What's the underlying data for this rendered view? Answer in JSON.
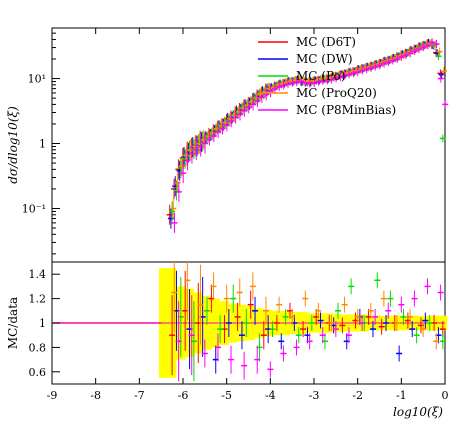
{
  "chart_data": [
    {
      "type": "scatter",
      "panel": "main",
      "ylabel": "dσ/dlog10(ξ)",
      "yscale": "log",
      "ylim": [
        0.015,
        60
      ],
      "xlim": [
        -9,
        0
      ],
      "yticks": [
        {
          "v": 0.1,
          "label": "10⁻¹"
        },
        {
          "v": 1,
          "label": "1"
        },
        {
          "v": 10,
          "label": "10¹"
        }
      ],
      "legend": {
        "placement": "top-right"
      },
      "series": [
        {
          "name": "MC (D6T)",
          "color": "#ff0000",
          "x": [
            -6.25,
            -6.15,
            -6.05,
            -5.95,
            -5.85,
            -5.75,
            -5.65,
            -5.55,
            -5.45,
            -5.35,
            -5.25,
            -5.15,
            -5.05,
            -4.95,
            -4.85,
            -4.75,
            -4.65,
            -4.55,
            -4.45,
            -4.35,
            -4.25,
            -4.15,
            -4.05,
            -3.95,
            -3.85,
            -3.75,
            -3.65,
            -3.55,
            -3.45,
            -3.35,
            -3.25,
            -3.15,
            -3.05,
            -2.95,
            -2.85,
            -2.75,
            -2.65,
            -2.55,
            -2.45,
            -2.35,
            -2.25,
            -2.15,
            -2.05,
            -1.95,
            -1.85,
            -1.75,
            -1.65,
            -1.55,
            -1.45,
            -1.35,
            -1.25,
            -1.15,
            -1.05,
            -0.95,
            -0.85,
            -0.75,
            -0.65,
            -0.55,
            -0.45,
            -0.35,
            -0.25,
            -0.15,
            -0.05
          ],
          "y": [
            0.08,
            0.2,
            0.4,
            0.6,
            0.75,
            0.85,
            0.95,
            1.1,
            1.2,
            1.4,
            1.6,
            1.8,
            2.0,
            2.3,
            2.6,
            3.0,
            3.4,
            3.8,
            4.2,
            4.8,
            5.5,
            6.0,
            6.8,
            7.2,
            7.8,
            8.2,
            8.6,
            9.0,
            9.2,
            9.5,
            9.0,
            8.8,
            8.9,
            9.3,
            9.6,
            9.8,
            10.0,
            10.5,
            11.0,
            11.5,
            12.0,
            12.5,
            13.0,
            13.8,
            14.5,
            15.0,
            15.8,
            16.5,
            17.5,
            18.5,
            19.5,
            20.5,
            22.0,
            23.5,
            25.0,
            27.0,
            29.0,
            31.0,
            33.0,
            35.0,
            33.0,
            25.0,
            12.0
          ]
        },
        {
          "name": "MC (DW)",
          "color": "#0000ff",
          "x": [
            -6.25,
            -6.15,
            -6.05,
            -5.95,
            -5.85,
            -5.75,
            -5.65,
            -5.55,
            -5.45,
            -5.35,
            -5.25,
            -5.15,
            -5.05,
            -4.95,
            -4.85,
            -4.75,
            -4.65,
            -4.55,
            -4.45,
            -4.35,
            -4.25,
            -4.15,
            -4.05,
            -3.95,
            -3.85,
            -3.75,
            -3.65,
            -3.55,
            -3.45,
            -3.35,
            -3.25,
            -3.15,
            -3.05,
            -2.95,
            -2.85,
            -2.75,
            -2.65,
            -2.55,
            -2.45,
            -2.35,
            -2.25,
            -2.15,
            -2.05,
            -1.95,
            -1.85,
            -1.75,
            -1.65,
            -1.55,
            -1.45,
            -1.35,
            -1.25,
            -1.15,
            -1.05,
            -0.95,
            -0.85,
            -0.75,
            -0.65,
            -0.55,
            -0.45,
            -0.35,
            -0.25,
            -0.15,
            -0.05
          ],
          "y": [
            0.07,
            0.22,
            0.38,
            0.62,
            0.72,
            0.88,
            0.92,
            1.05,
            1.25,
            1.35,
            1.55,
            1.85,
            1.95,
            2.4,
            2.5,
            3.1,
            3.3,
            3.9,
            4.1,
            4.9,
            5.3,
            6.2,
            6.6,
            7.4,
            7.6,
            8.4,
            8.4,
            9.2,
            9.0,
            9.7,
            8.8,
            9.0,
            8.7,
            9.5,
            9.4,
            10.0,
            9.8,
            10.7,
            10.8,
            11.7,
            11.8,
            12.7,
            12.8,
            14.0,
            14.3,
            15.2,
            15.6,
            16.8,
            17.2,
            18.8,
            19.2,
            20.8,
            21.7,
            23.8,
            24.7,
            27.4,
            28.6,
            31.4,
            32.6,
            35.5,
            32.6,
            24.5,
            11.5
          ]
        },
        {
          "name": "MC (Po)",
          "color": "#00dd00",
          "x": [
            -6.25,
            -6.15,
            -6.05,
            -5.95,
            -5.85,
            -5.75,
            -5.65,
            -5.55,
            -5.45,
            -5.35,
            -5.25,
            -5.15,
            -5.05,
            -4.95,
            -4.85,
            -4.75,
            -4.65,
            -4.55,
            -4.45,
            -4.35,
            -4.25,
            -4.15,
            -4.05,
            -3.95,
            -3.85,
            -3.75,
            -3.65,
            -3.55,
            -3.45,
            -3.35,
            -3.25,
            -3.15,
            -3.05,
            -2.95,
            -2.85,
            -2.75,
            -2.65,
            -2.55,
            -2.45,
            -2.35,
            -2.25,
            -2.15,
            -2.05,
            -1.95,
            -1.85,
            -1.75,
            -1.65,
            -1.55,
            -1.45,
            -1.35,
            -1.25,
            -1.15,
            -1.05,
            -0.95,
            -0.85,
            -0.75,
            -0.65,
            -0.55,
            -0.45,
            -0.35,
            -0.25,
            -0.15,
            -0.05
          ],
          "y": [
            0.09,
            0.19,
            0.42,
            0.58,
            0.78,
            0.82,
            0.98,
            1.08,
            1.22,
            1.38,
            1.62,
            1.78,
            2.05,
            2.25,
            2.65,
            2.95,
            3.45,
            3.75,
            4.25,
            4.75,
            5.6,
            5.9,
            6.9,
            7.1,
            7.9,
            8.1,
            8.7,
            8.9,
            9.3,
            9.4,
            9.1,
            8.7,
            9.0,
            9.2,
            9.7,
            9.7,
            10.1,
            10.4,
            11.1,
            11.4,
            12.1,
            12.4,
            13.1,
            13.7,
            14.6,
            14.9,
            15.9,
            16.4,
            17.6,
            18.4,
            19.6,
            20.4,
            22.1,
            23.4,
            25.1,
            26.9,
            29.1,
            30.9,
            33.1,
            34.5,
            32.0,
            22.0,
            1.2
          ]
        },
        {
          "name": "MC (ProQ20)",
          "color": "#ff8800",
          "x": [
            -6.25,
            -6.15,
            -6.05,
            -5.95,
            -5.85,
            -5.75,
            -5.65,
            -5.55,
            -5.45,
            -5.35,
            -5.25,
            -5.15,
            -5.05,
            -4.95,
            -4.85,
            -4.75,
            -4.65,
            -4.55,
            -4.45,
            -4.35,
            -4.25,
            -4.15,
            -4.05,
            -3.95,
            -3.85,
            -3.75,
            -3.65,
            -3.55,
            -3.45,
            -3.35,
            -3.25,
            -3.15,
            -3.05,
            -2.95,
            -2.85,
            -2.75,
            -2.65,
            -2.55,
            -2.45,
            -2.35,
            -2.25,
            -2.15,
            -2.05,
            -1.95,
            -1.85,
            -1.75,
            -1.65,
            -1.55,
            -1.45,
            -1.35,
            -1.25,
            -1.15,
            -1.05,
            -0.95,
            -0.85,
            -0.75,
            -0.65,
            -0.55,
            -0.45,
            -0.35,
            -0.25,
            -0.15,
            -0.05
          ],
          "y": [
            0.1,
            0.25,
            0.45,
            0.65,
            0.8,
            0.9,
            1.0,
            1.15,
            1.3,
            1.45,
            1.7,
            1.9,
            2.1,
            2.4,
            2.7,
            3.1,
            3.5,
            3.9,
            4.4,
            5.0,
            5.7,
            6.2,
            7.0,
            7.4,
            8.0,
            8.4,
            8.8,
            9.2,
            9.5,
            9.8,
            9.3,
            9.1,
            9.2,
            9.6,
            9.9,
            10.1,
            10.3,
            10.8,
            11.3,
            11.8,
            12.3,
            12.8,
            13.3,
            14.1,
            14.8,
            15.3,
            16.1,
            16.8,
            17.8,
            18.8,
            19.8,
            20.8,
            22.3,
            23.8,
            25.3,
            27.3,
            29.3,
            31.3,
            33.3,
            35.3,
            33.5,
            26.0,
            13.0
          ]
        },
        {
          "name": "MC (P8MinBias)",
          "color": "#ff00ff",
          "x": [
            -6.25,
            -6.15,
            -6.05,
            -5.95,
            -5.85,
            -5.75,
            -5.65,
            -5.55,
            -5.45,
            -5.35,
            -5.25,
            -5.15,
            -5.05,
            -4.95,
            -4.85,
            -4.75,
            -4.65,
            -4.55,
            -4.45,
            -4.35,
            -4.25,
            -4.15,
            -4.05,
            -3.95,
            -3.85,
            -3.75,
            -3.65,
            -3.55,
            -3.45,
            -3.35,
            -3.25,
            -3.15,
            -3.05,
            -2.95,
            -2.85,
            -2.75,
            -2.65,
            -2.55,
            -2.45,
            -2.35,
            -2.25,
            -2.15,
            -2.05,
            -1.95,
            -1.85,
            -1.75,
            -1.65,
            -1.55,
            -1.45,
            -1.35,
            -1.25,
            -1.15,
            -1.05,
            -0.95,
            -0.85,
            -0.75,
            -0.65,
            -0.55,
            -0.45,
            -0.35,
            -0.25,
            -0.15,
            -0.05
          ],
          "y": [
            0.06,
            0.18,
            0.35,
            0.55,
            0.7,
            0.8,
            0.9,
            1.0,
            1.15,
            1.3,
            1.5,
            1.7,
            1.9,
            2.2,
            2.5,
            2.8,
            3.2,
            3.6,
            4.0,
            4.5,
            5.2,
            5.7,
            6.4,
            6.9,
            7.4,
            7.8,
            8.2,
            8.6,
            8.8,
            9.1,
            8.6,
            8.4,
            8.5,
            8.9,
            9.2,
            9.4,
            9.6,
            10.1,
            10.6,
            11.1,
            11.6,
            12.1,
            12.6,
            13.3,
            14.0,
            14.5,
            15.3,
            16.0,
            17.0,
            18.0,
            19.0,
            20.0,
            21.5,
            23.0,
            24.5,
            26.5,
            28.5,
            30.5,
            32.5,
            36.0,
            34.0,
            10.0,
            4.0
          ]
        }
      ]
    },
    {
      "type": "scatter",
      "panel": "ratio",
      "xlabel": "log10(ξ)",
      "ylabel": "MC/data",
      "xlim": [
        -9,
        0
      ],
      "ylim": [
        0.5,
        1.5
      ],
      "xticks": [
        -9,
        -8,
        -7,
        -6,
        -5,
        -4,
        -3,
        -2,
        -1,
        0
      ],
      "yticks": [
        0.6,
        0.8,
        1,
        1.2,
        1.4
      ],
      "reference_line": {
        "y": 1,
        "color": "#ff00aa",
        "x_from": -9,
        "x_to": -6.5
      },
      "uncertainty_band": {
        "color": "#ffff00",
        "x": [
          -6.45,
          -6.25,
          -6.05,
          -5.85,
          -5.65,
          -5.45,
          -5.25,
          -5.05,
          -4.85,
          -4.65,
          -4.45,
          -4.25,
          -4.05,
          -3.85,
          -3.65,
          -3.45,
          -3.25,
          -3.05,
          -2.85,
          -2.65,
          -2.45,
          -2.25,
          -2.05,
          -1.85,
          -1.65,
          -1.45,
          -1.25,
          -1.05,
          -0.85,
          -0.65,
          -0.45,
          -0.25,
          -0.05
        ],
        "half_width": [
          0.45,
          0.45,
          0.3,
          0.28,
          0.25,
          0.22,
          0.2,
          0.18,
          0.16,
          0.15,
          0.14,
          0.12,
          0.11,
          0.1,
          0.1,
          0.09,
          0.09,
          0.08,
          0.08,
          0.08,
          0.07,
          0.07,
          0.07,
          0.07,
          0.06,
          0.06,
          0.06,
          0.06,
          0.06,
          0.06,
          0.06,
          0.06,
          0.06
        ]
      },
      "series": [
        {
          "name": "MC (D6T)",
          "color": "#ff0000",
          "x": [
            -6.25,
            -5.95,
            -5.65,
            -5.35,
            -5.05,
            -4.75,
            -4.45,
            -4.15,
            -3.85,
            -3.55,
            -3.25,
            -2.95,
            -2.65,
            -2.35,
            -2.05,
            -1.75,
            -1.45,
            -1.15,
            -0.85,
            -0.55,
            -0.25,
            -0.05
          ],
          "y": [
            0.9,
            1.1,
            1.0,
            1.2,
            0.95,
            1.05,
            1.15,
            0.9,
            1.0,
            1.1,
            0.95,
            1.05,
            1.0,
            0.98,
            1.02,
            1.05,
            0.97,
            1.0,
            1.02,
            0.98,
            1.0,
            0.95
          ]
        },
        {
          "name": "MC (DW)",
          "color": "#0000ff",
          "x": [
            -6.15,
            -5.85,
            -5.55,
            -5.25,
            -4.95,
            -4.65,
            -4.35,
            -4.05,
            -3.75,
            -3.45,
            -3.15,
            -2.85,
            -2.55,
            -2.25,
            -1.95,
            -1.65,
            -1.35,
            -1.05,
            -0.75,
            -0.45,
            -0.15
          ],
          "y": [
            1.1,
            0.95,
            1.05,
            0.7,
            1.0,
            0.9,
            1.1,
            0.95,
            0.85,
            1.0,
            0.9,
            1.02,
            0.98,
            0.85,
            1.05,
            0.95,
            1.0,
            0.75,
            0.95,
            1.02,
            0.9
          ]
        },
        {
          "name": "MC (Po)",
          "color": "#00dd00",
          "x": [
            -6.05,
            -5.75,
            -5.45,
            -5.15,
            -4.85,
            -4.55,
            -4.25,
            -3.95,
            -3.65,
            -3.35,
            -3.05,
            -2.75,
            -2.45,
            -2.15,
            -1.85,
            -1.55,
            -1.25,
            -0.95,
            -0.65,
            -0.35,
            -0.05
          ],
          "y": [
            1.05,
            0.85,
            1.1,
            0.95,
            1.2,
            1.0,
            0.8,
            0.95,
            1.05,
            0.9,
            1.0,
            0.85,
            1.1,
            1.3,
            1.0,
            1.35,
            1.2,
            1.05,
            0.9,
            1.0,
            0.85
          ]
        },
        {
          "name": "MC (ProQ20)",
          "color": "#ff8800",
          "x": [
            -6.2,
            -5.9,
            -5.6,
            -5.3,
            -5.0,
            -4.7,
            -4.4,
            -4.1,
            -3.8,
            -3.5,
            -3.2,
            -2.9,
            -2.6,
            -2.3,
            -2.0,
            -1.7,
            -1.4,
            -1.1,
            -0.8,
            -0.5,
            -0.2
          ],
          "y": [
            1.25,
            1.35,
            1.15,
            1.3,
            1.2,
            1.25,
            1.3,
            1.1,
            1.15,
            1.05,
            1.2,
            1.1,
            1.0,
            1.15,
            1.05,
            1.1,
            1.2,
            1.0,
            1.05,
            0.95,
            0.85
          ]
        },
        {
          "name": "MC (P8MinBias)",
          "color": "#ff00ff",
          "x": [
            -6.1,
            -5.8,
            -5.5,
            -5.2,
            -4.9,
            -4.6,
            -4.3,
            -4.0,
            -3.7,
            -3.4,
            -3.1,
            -2.8,
            -2.5,
            -2.2,
            -1.9,
            -1.6,
            -1.3,
            -1.0,
            -0.7,
            -0.4,
            -0.1
          ],
          "y": [
            0.85,
            0.9,
            0.75,
            0.8,
            0.7,
            0.65,
            0.7,
            0.62,
            0.75,
            0.8,
            0.85,
            0.9,
            0.95,
            0.9,
            1.0,
            1.05,
            1.1,
            1.15,
            1.2,
            1.3,
            1.25
          ]
        }
      ]
    }
  ],
  "legend": {
    "entries": [
      {
        "label": "MC (D6T)",
        "color": "#ff0000"
      },
      {
        "label": "MC (DW)",
        "color": "#0000ff"
      },
      {
        "label": "MC (Po)",
        "color": "#00dd00"
      },
      {
        "label": "MC (ProQ20)",
        "color": "#ff8800"
      },
      {
        "label": "MC (P8MinBias)",
        "color": "#ff00ff"
      }
    ]
  },
  "axes": {
    "main_ylabel": "dσ/dlog10(ξ)",
    "ratio_ylabel": "MC/data",
    "xlabel": "log10(ξ)"
  }
}
